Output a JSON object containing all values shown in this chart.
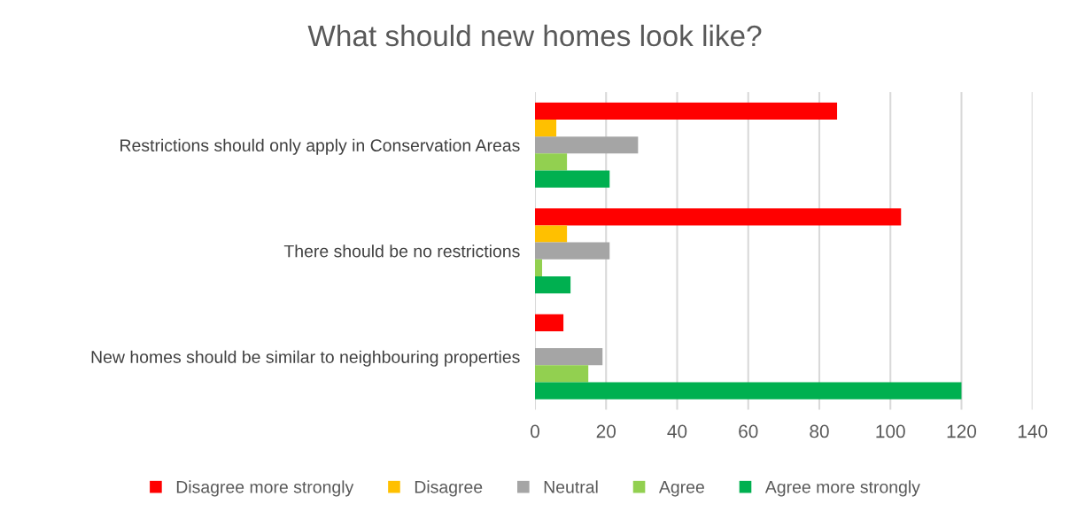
{
  "chart_data": {
    "type": "bar",
    "orientation": "horizontal",
    "title": "What should new homes look like?",
    "categories": [
      "Restrictions should only apply in Conservation Areas",
      "There should be no restrictions",
      "New homes should be similar to neighbouring properties"
    ],
    "series": [
      {
        "name": "Disagree more strongly",
        "color": "#ff0000",
        "values": [
          85,
          103,
          8
        ]
      },
      {
        "name": "Disagree",
        "color": "#ffc000",
        "values": [
          6,
          9,
          0
        ]
      },
      {
        "name": "Neutral",
        "color": "#a5a5a5",
        "values": [
          29,
          21,
          19
        ]
      },
      {
        "name": "Agree",
        "color": "#92d050",
        "values": [
          9,
          2,
          15
        ]
      },
      {
        "name": "Agree more strongly",
        "color": "#00b050",
        "values": [
          21,
          10,
          120
        ]
      }
    ],
    "xlim": [
      0,
      140
    ],
    "xticks": [
      0,
      20,
      40,
      60,
      80,
      100,
      120,
      140
    ],
    "grid": "x",
    "legend": "bottom"
  }
}
